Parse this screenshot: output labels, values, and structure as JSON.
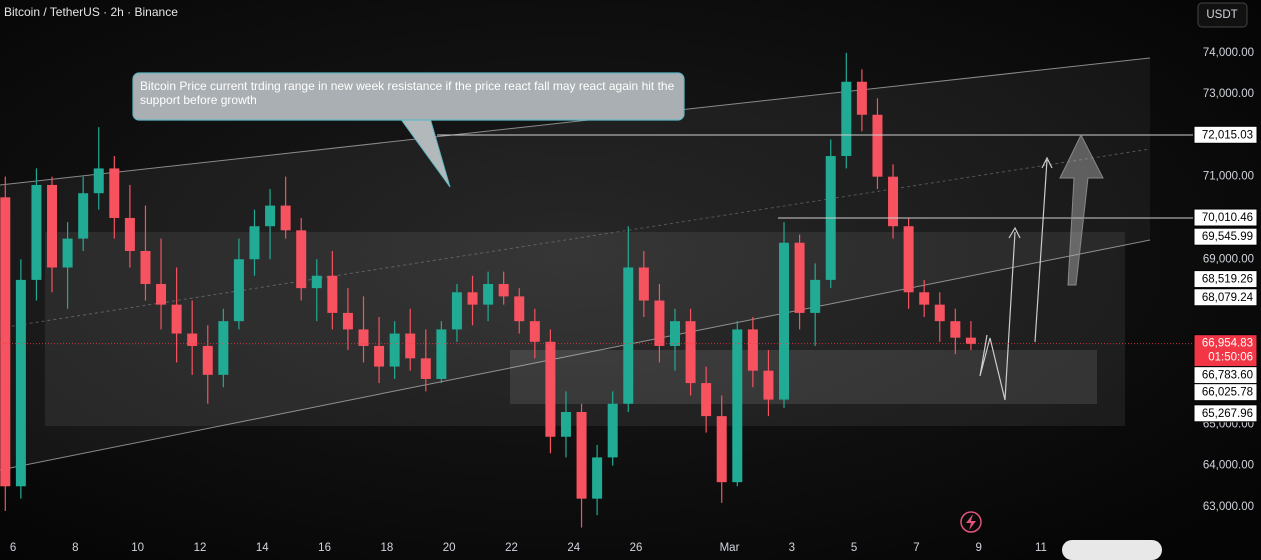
{
  "chart_data": {
    "type": "candlestick",
    "title": "Bitcoin / TetherUS · 2h · Binance",
    "currency": "USDT",
    "annotation": "Bitcoin Price current trding range in new week resistance if the price react fall may react again hit the support before growth",
    "x": [
      5.75,
      6.25,
      6.75,
      7.25,
      7.75,
      8.25,
      8.75,
      9.25,
      9.75,
      10.25,
      10.75,
      11.25,
      11.75,
      12.25,
      12.75,
      13.25,
      13.75,
      14.25,
      14.75,
      15.25,
      15.75,
      16.25,
      16.75,
      17.25,
      17.75,
      18.25,
      18.75,
      19.25,
      19.75,
      20.25,
      20.75,
      21.25,
      21.75,
      22.25,
      22.75,
      23.25,
      23.75,
      24.25,
      24.75,
      25.25,
      25.75,
      26.25,
      26.75,
      27.25,
      27.75,
      28.25,
      28.75,
      29.25,
      29.75,
      30.25,
      30.75,
      31.25,
      31.75,
      32.25,
      32.75,
      33.25,
      33.75,
      34.25,
      34.75,
      35.25,
      35.75,
      36.25,
      36.75
    ],
    "open": [
      70500,
      63500,
      68500,
      70800,
      68800,
      69500,
      70600,
      71200,
      70000,
      69200,
      68400,
      67900,
      67200,
      66900,
      66200,
      67500,
      69000,
      69800,
      70300,
      69700,
      68300,
      68600,
      67700,
      67300,
      66900,
      66400,
      67200,
      66600,
      66100,
      67300,
      68200,
      67900,
      68400,
      68100,
      67500,
      67000,
      64700,
      65300,
      63200,
      64200,
      65500,
      68800,
      68000,
      66900,
      67500,
      66000,
      65200,
      63600,
      67300,
      66300,
      65600,
      69400,
      67700,
      68500,
      71500,
      73300,
      72500,
      71000,
      69800,
      68200,
      67900,
      67500,
      67100
    ],
    "high": [
      71000,
      69000,
      71200,
      71000,
      69900,
      71000,
      72200,
      71500,
      70800,
      70300,
      69500,
      68800,
      68000,
      67400,
      67800,
      69500,
      70200,
      70700,
      71000,
      70000,
      69000,
      69200,
      68300,
      68100,
      67600,
      67500,
      67800,
      67300,
      67500,
      68400,
      68600,
      68700,
      68700,
      68300,
      67800,
      67300,
      65800,
      65500,
      64500,
      65800,
      69800,
      69200,
      68400,
      67800,
      67800,
      66400,
      65700,
      67500,
      67600,
      66800,
      69900,
      69600,
      68900,
      71900,
      74000,
      73600,
      72900,
      71300,
      70000,
      68500,
      68200,
      67800,
      67500
    ],
    "low": [
      62900,
      63200,
      68000,
      68200,
      67800,
      69200,
      70200,
      69500,
      68800,
      68000,
      67300,
      66500,
      66200,
      65500,
      65900,
      67300,
      68600,
      69000,
      69500,
      68000,
      67500,
      67300,
      66800,
      66500,
      66000,
      66100,
      66300,
      65800,
      66000,
      67000,
      67400,
      67500,
      67900,
      67200,
      66600,
      64300,
      64200,
      62500,
      62800,
      64000,
      65300,
      67600,
      66500,
      66300,
      65700,
      64800,
      63100,
      63500,
      65900,
      65200,
      65400,
      67300,
      66900,
      68300,
      71200,
      72100,
      70700,
      69500,
      67800,
      67600,
      67000,
      66700,
      66800
    ],
    "close": [
      63500,
      68500,
      70800,
      68800,
      69500,
      70600,
      71200,
      70000,
      69200,
      68400,
      67900,
      67200,
      66900,
      66200,
      67500,
      69000,
      69800,
      70300,
      69700,
      68300,
      68600,
      67700,
      67300,
      66900,
      66400,
      67200,
      66600,
      66100,
      67300,
      68200,
      67900,
      68400,
      68100,
      67500,
      67000,
      64700,
      65300,
      63200,
      64200,
      65500,
      68800,
      68000,
      66900,
      67500,
      66000,
      65200,
      63600,
      67300,
      66300,
      65600,
      69400,
      67700,
      68500,
      71500,
      73300,
      72500,
      71000,
      69800,
      68200,
      67900,
      67500,
      67100,
      66950
    ],
    "up_color": "#22ab94",
    "down_color": "#f7525f",
    "xlim": [
      5.58,
      43.88
    ],
    "ylim": [
      62320,
      75280
    ],
    "xticks": [
      6,
      8,
      10,
      12,
      14,
      16,
      18,
      20,
      22,
      24,
      26,
      {
        "value": 29,
        "label": "Mar"
      },
      {
        "value": 31,
        "label": "3"
      },
      {
        "value": 33,
        "label": "5"
      },
      {
        "value": 35,
        "label": "7"
      },
      {
        "value": 37,
        "label": "9"
      },
      {
        "value": 39,
        "label": "11"
      }
    ],
    "yticks": [
      {
        "value": 74000,
        "label": "74,000.00"
      },
      {
        "value": 73000,
        "label": "73,000.00"
      },
      {
        "value": 71000,
        "label": "71,000.00"
      },
      {
        "value": 69000,
        "label": "69,000.00"
      },
      {
        "value": 65000,
        "label": "65,000.00"
      },
      {
        "value": 64000,
        "label": "64,000.00"
      },
      {
        "value": 63000,
        "label": "63,000.00"
      }
    ],
    "price_levels": [
      {
        "value": 72015.03,
        "label": "72,015.03"
      },
      {
        "value": 70010.46,
        "label": "70,010.46"
      },
      {
        "value": 69545.99,
        "label": "69,545.99"
      },
      {
        "value": 68519.26,
        "label": "68,519.26"
      },
      {
        "value": 68079.24,
        "label": "68,079.24"
      },
      {
        "value": 66783.6,
        "label": "66,783.60"
      },
      {
        "value": 66025.78,
        "label": "66,025.78"
      },
      {
        "value": 65267.96,
        "label": "65,267.96"
      }
    ],
    "current_price": {
      "value": 66954.83,
      "label": "66,954.83",
      "countdown": "01:50:06",
      "color": "#f23645"
    }
  }
}
